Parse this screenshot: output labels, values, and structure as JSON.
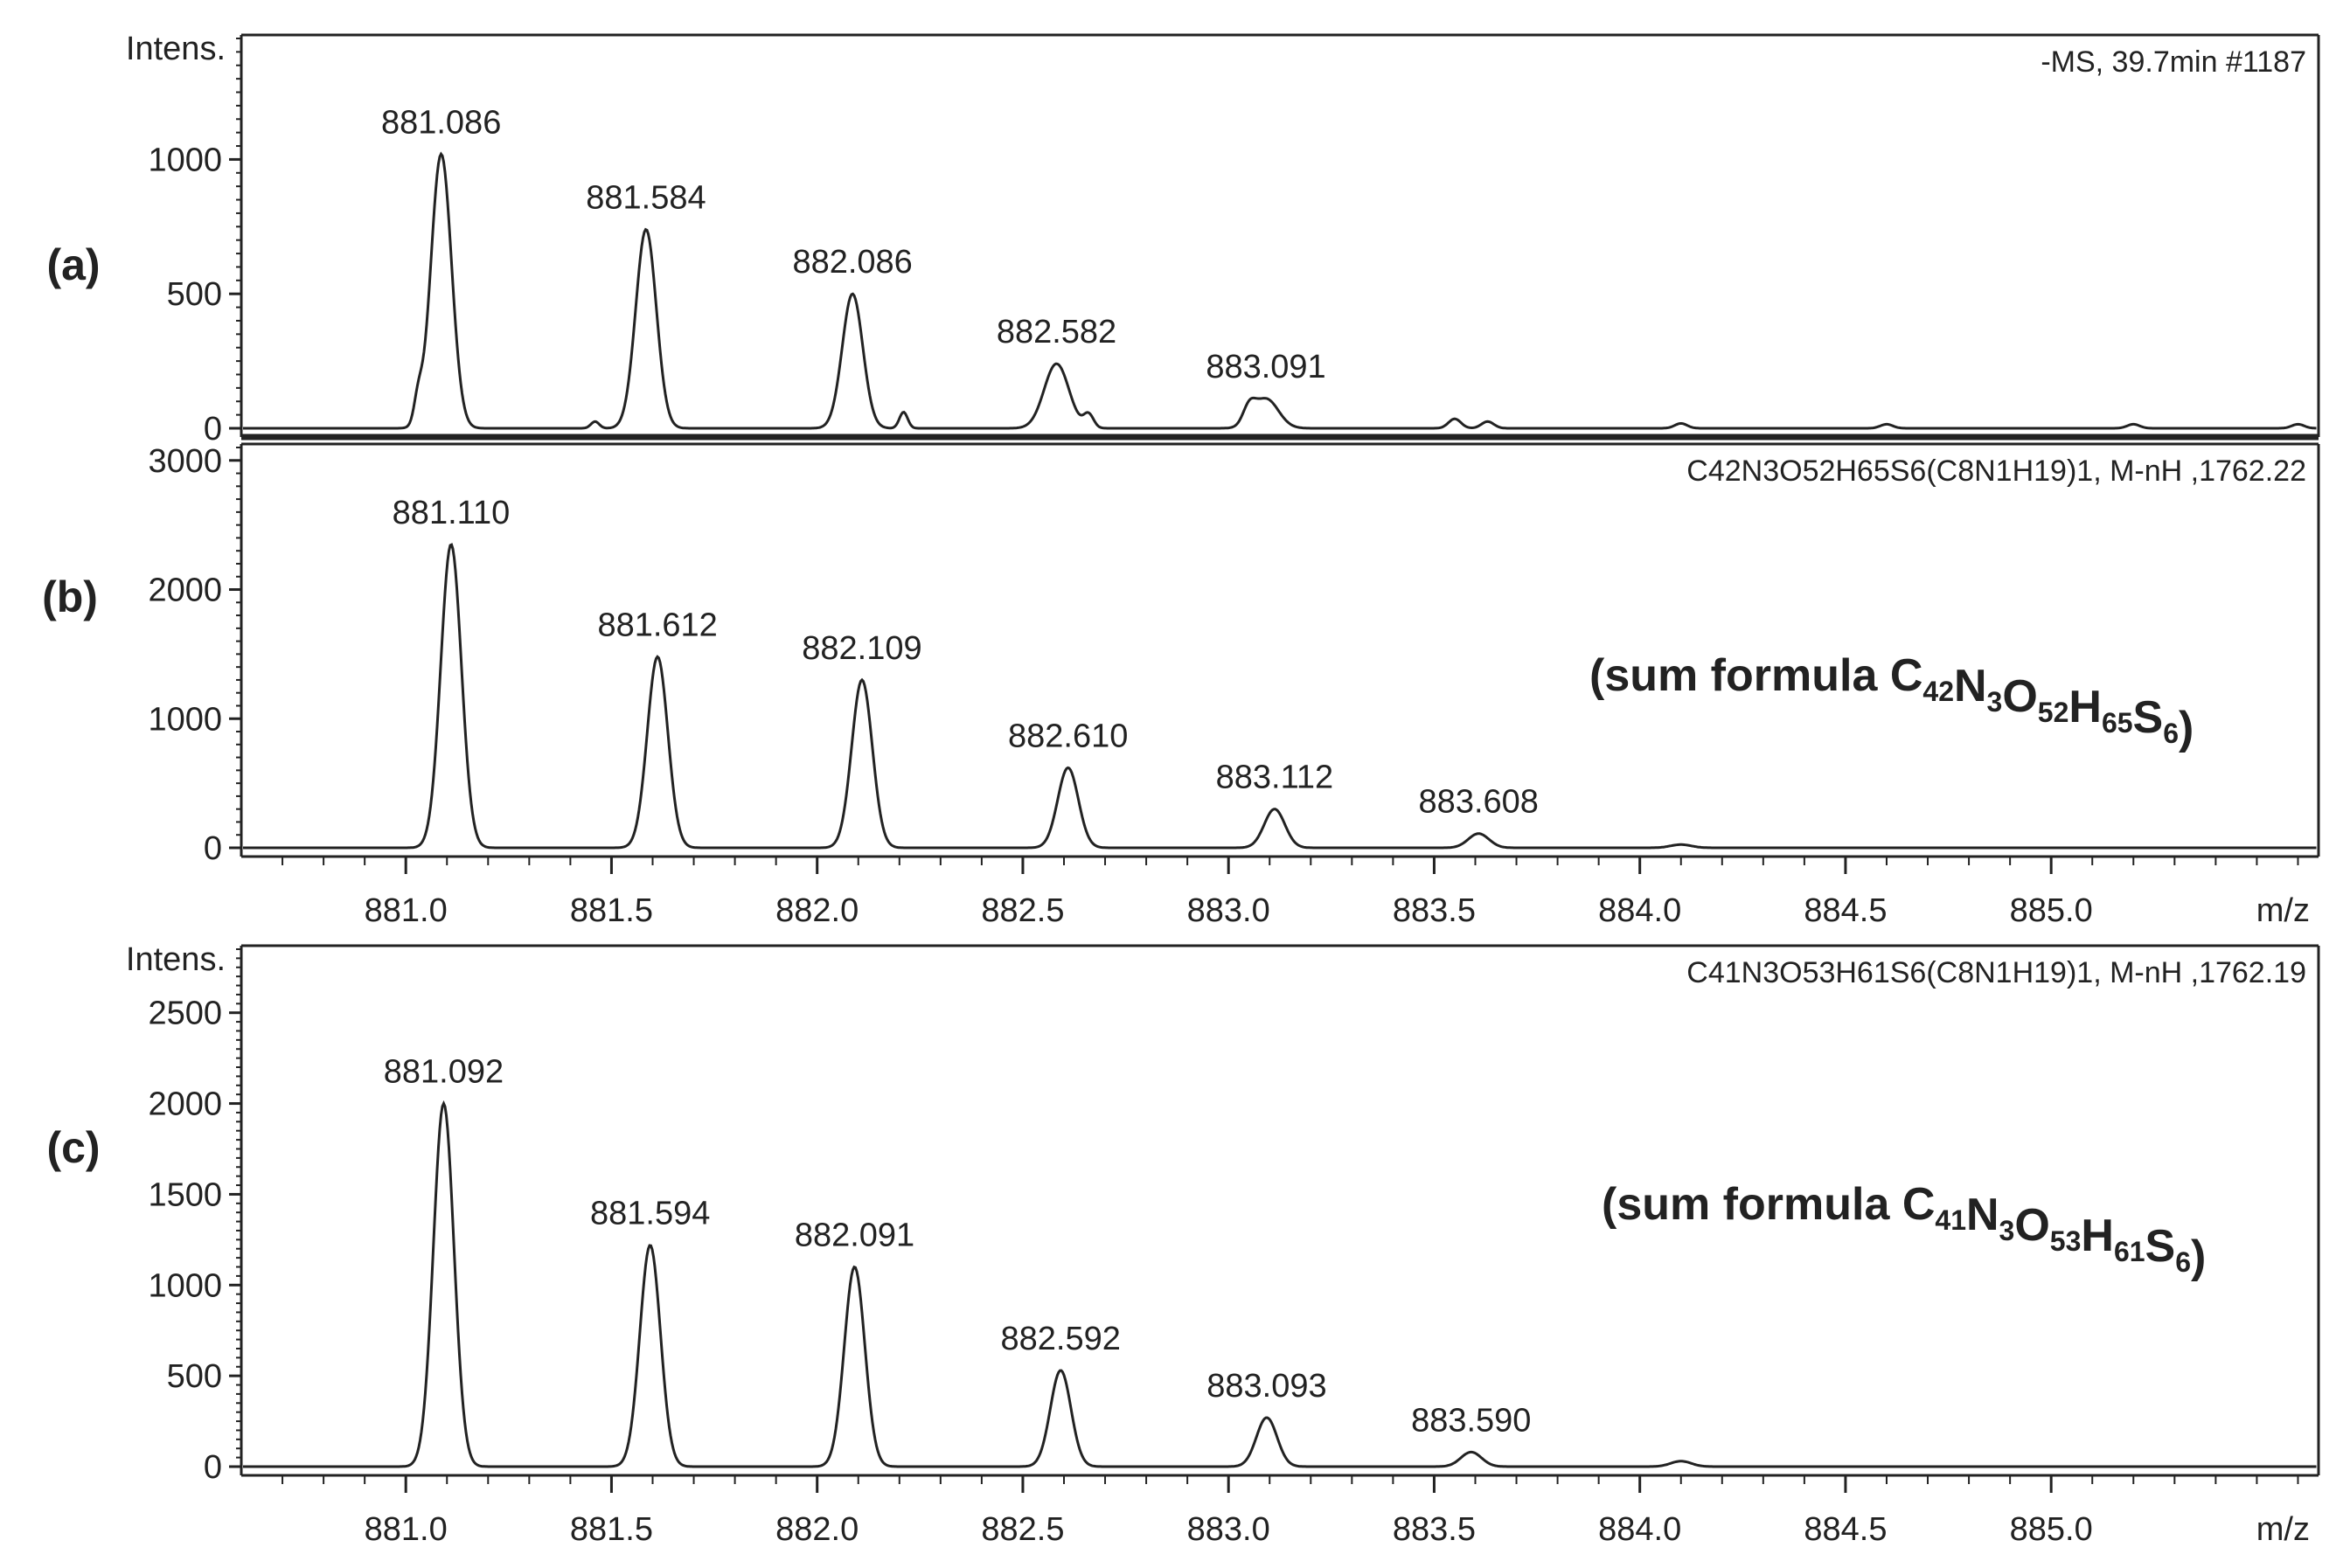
{
  "chart_data": [
    {
      "panel": "(a)",
      "type": "line",
      "ylabel": "Intens.",
      "annotation": "-MS, 39.7min #1187",
      "formula_note": null,
      "xlim": [
        880.6,
        885.65
      ],
      "ylim": [
        0,
        1450
      ],
      "yticks": [
        "0",
        "500",
        "1000"
      ],
      "ytick_values": [
        0,
        500,
        1000
      ],
      "show_x_axis": false,
      "peaks": [
        {
          "mz": 881.086,
          "intensity": 1020,
          "width": 0.025,
          "label": "881.086"
        },
        {
          "mz": 881.584,
          "intensity": 740,
          "width": 0.025,
          "label": "881.584"
        },
        {
          "mz": 882.086,
          "intensity": 500,
          "width": 0.025,
          "label": "882.086"
        },
        {
          "mz": 882.582,
          "intensity": 240,
          "width": 0.03,
          "label": "882.582"
        },
        {
          "mz": 883.091,
          "intensity": 110,
          "width": 0.03,
          "label": "883.091"
        }
      ],
      "minor_peaks": [
        {
          "mz": 881.03,
          "intensity": 90,
          "width": 0.01
        },
        {
          "mz": 881.46,
          "intensity": 25,
          "width": 0.01
        },
        {
          "mz": 882.21,
          "intensity": 60,
          "width": 0.01
        },
        {
          "mz": 882.66,
          "intensity": 50,
          "width": 0.012
        },
        {
          "mz": 883.05,
          "intensity": 60,
          "width": 0.015
        },
        {
          "mz": 883.55,
          "intensity": 35,
          "width": 0.015
        },
        {
          "mz": 883.63,
          "intensity": 25,
          "width": 0.015
        },
        {
          "mz": 884.1,
          "intensity": 18,
          "width": 0.015
        },
        {
          "mz": 884.6,
          "intensity": 15,
          "width": 0.015
        },
        {
          "mz": 885.2,
          "intensity": 15,
          "width": 0.015
        },
        {
          "mz": 885.6,
          "intensity": 15,
          "width": 0.015
        }
      ]
    },
    {
      "panel": "(b)",
      "type": "line",
      "ylabel": null,
      "annotation": "C42N3O52H65S6(C8N1H19)1, M-nH ,1762.22",
      "formula_note": {
        "prefix": "(sum formula ",
        "parts": [
          [
            "C",
            "42"
          ],
          [
            "N",
            "3"
          ],
          [
            "O",
            "52"
          ],
          [
            "H",
            "65"
          ],
          [
            "S",
            "6"
          ]
        ],
        "suffix": ")"
      },
      "xlim": [
        880.6,
        885.65
      ],
      "ylim": [
        0,
        3100
      ],
      "yticks": [
        "0",
        "1000",
        "2000",
        "3000"
      ],
      "ytick_values": [
        0,
        1000,
        2000,
        3000
      ],
      "show_x_axis": true,
      "xlabel": "m/z",
      "xticks": [
        "881.0",
        "881.5",
        "882.0",
        "882.5",
        "883.0",
        "883.5",
        "884.0",
        "884.5",
        "885.0"
      ],
      "xtick_values": [
        881.0,
        881.5,
        882.0,
        882.5,
        883.0,
        883.5,
        884.0,
        884.5,
        885.0
      ],
      "peaks": [
        {
          "mz": 881.11,
          "intensity": 2350,
          "width": 0.025,
          "label": "881.110"
        },
        {
          "mz": 881.612,
          "intensity": 1480,
          "width": 0.025,
          "label": "881.612"
        },
        {
          "mz": 882.109,
          "intensity": 1300,
          "width": 0.025,
          "label": "882.109"
        },
        {
          "mz": 882.61,
          "intensity": 620,
          "width": 0.025,
          "label": "882.610"
        },
        {
          "mz": 883.112,
          "intensity": 300,
          "width": 0.025,
          "label": "883.112"
        },
        {
          "mz": 883.608,
          "intensity": 110,
          "width": 0.025,
          "label": "883.608"
        },
        {
          "mz": 884.1,
          "intensity": 25,
          "width": 0.025,
          "label": null
        }
      ],
      "minor_peaks": []
    },
    {
      "panel": "(c)",
      "type": "line",
      "ylabel": "Intens.",
      "annotation": "C41N3O53H61S6(C8N1H19)1, M-nH ,1762.19",
      "formula_note": {
        "prefix": "(sum formula ",
        "parts": [
          [
            "C",
            "41"
          ],
          [
            "N",
            "3"
          ],
          [
            "O",
            "53"
          ],
          [
            "H",
            "61"
          ],
          [
            "S",
            "6"
          ]
        ],
        "suffix": ")"
      },
      "xlim": [
        880.6,
        885.65
      ],
      "ylim": [
        0,
        2850
      ],
      "yticks": [
        "0",
        "500",
        "1000",
        "1500",
        "2000",
        "2500"
      ],
      "ytick_values": [
        0,
        500,
        1000,
        1500,
        2000,
        2500
      ],
      "show_x_axis": true,
      "xlabel": "m/z",
      "xticks": [
        "881.0",
        "881.5",
        "882.0",
        "882.5",
        "883.0",
        "883.5",
        "884.0",
        "884.5",
        "885.0"
      ],
      "xtick_values": [
        881.0,
        881.5,
        882.0,
        882.5,
        883.0,
        883.5,
        884.0,
        884.5,
        885.0
      ],
      "peaks": [
        {
          "mz": 881.092,
          "intensity": 2000,
          "width": 0.025,
          "label": "881.092"
        },
        {
          "mz": 881.594,
          "intensity": 1220,
          "width": 0.025,
          "label": "881.594"
        },
        {
          "mz": 882.091,
          "intensity": 1100,
          "width": 0.025,
          "label": "882.091"
        },
        {
          "mz": 882.592,
          "intensity": 530,
          "width": 0.025,
          "label": "882.592"
        },
        {
          "mz": 883.093,
          "intensity": 270,
          "width": 0.025,
          "label": "883.093"
        },
        {
          "mz": 883.59,
          "intensity": 80,
          "width": 0.025,
          "label": "883.590"
        },
        {
          "mz": 884.1,
          "intensity": 30,
          "width": 0.025,
          "label": null
        }
      ],
      "minor_peaks": []
    }
  ]
}
